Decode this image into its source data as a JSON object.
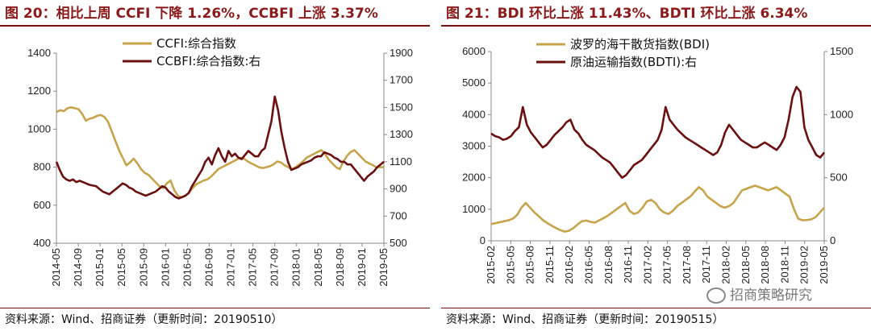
{
  "left": {
    "title": "图 20：相比上周 CCFI 下降 1.26%，CCBFI 上涨 3.37%",
    "source": "资料来源：Wind、招商证券（更新时间：20190510）"
  },
  "right": {
    "title": "图 21：BDI 环比上涨 11.43%、BDTI 环比上涨 6.34%",
    "source": "资料来源：Wind、招商证券（更新时间：20190515）"
  },
  "watermark": "招商策略研究",
  "colors": {
    "gold": "#c7a34a",
    "maroon": "#6b0f0f",
    "title": "#8c1a1a"
  },
  "chart_data": [
    {
      "type": "line",
      "dual_axis": true,
      "x_ticks": [
        "2014-05",
        "2014-09",
        "2015-01",
        "2015-05",
        "2015-09",
        "2016-01",
        "2016-05",
        "2016-09",
        "2017-01",
        "2017-05",
        "2017-09",
        "2018-01",
        "2018-05",
        "2018-09",
        "2019-01",
        "2019-05"
      ],
      "y_left": {
        "min": 400,
        "max": 1400,
        "ticks": [
          "400",
          "600",
          "800",
          "1000",
          "1200",
          "1400"
        ]
      },
      "y_right": {
        "min": 500,
        "max": 1900,
        "ticks": [
          "500",
          "700",
          "900",
          "1100",
          "1300",
          "1500",
          "1700",
          "1900"
        ]
      },
      "legend_position": "top-left",
      "series": [
        {
          "name": "CCFI:综合指数",
          "axis": "left",
          "color": "#c7a34a",
          "values": [
            1090,
            1100,
            1095,
            1110,
            1115,
            1110,
            1105,
            1080,
            1045,
            1055,
            1060,
            1070,
            1075,
            1065,
            1040,
            990,
            940,
            890,
            850,
            810,
            825,
            845,
            820,
            790,
            770,
            760,
            740,
            720,
            700,
            690,
            715,
            730,
            680,
            650,
            640,
            650,
            665,
            690,
            710,
            720,
            730,
            735,
            750,
            770,
            790,
            800,
            810,
            820,
            830,
            840,
            850,
            845,
            830,
            820,
            810,
            800,
            795,
            800,
            805,
            815,
            830,
            825,
            810,
            800,
            790,
            800,
            815,
            830,
            850,
            860,
            870,
            880,
            890,
            870,
            840,
            820,
            800,
            790,
            830,
            860,
            880,
            890,
            870,
            850,
            830,
            820,
            810,
            800,
            800,
            800
          ]
        },
        {
          "name": "CCBFI:综合指数:右",
          "axis": "right",
          "color": "#6b0f0f",
          "values": [
            1100,
            1040,
            990,
            970,
            960,
            970,
            950,
            960,
            950,
            940,
            930,
            925,
            920,
            900,
            880,
            870,
            860,
            880,
            900,
            920,
            940,
            930,
            910,
            900,
            880,
            870,
            860,
            850,
            860,
            870,
            880,
            900,
            920,
            910,
            880,
            860,
            840,
            830,
            840,
            850,
            870,
            920,
            960,
            1000,
            1040,
            1100,
            1130,
            1080,
            1150,
            1200,
            1140,
            1100,
            1180,
            1140,
            1160,
            1130,
            1120,
            1150,
            1180,
            1160,
            1140,
            1140,
            1180,
            1200,
            1300,
            1400,
            1580,
            1480,
            1320,
            1200,
            1100,
            1040,
            1050,
            1060,
            1080,
            1090,
            1100,
            1110,
            1130,
            1140,
            1140,
            1170,
            1160,
            1150,
            1130,
            1120,
            1100,
            1100,
            1080,
            1080,
            1050,
            1020,
            990,
            960,
            990,
            1010,
            1030,
            1060,
            1080,
            1100
          ]
        }
      ]
    },
    {
      "type": "line",
      "dual_axis": true,
      "x_ticks": [
        "2015-02",
        "2015-05",
        "2015-08",
        "2015-11",
        "2016-02",
        "2016-05",
        "2016-08",
        "2016-11",
        "2017-02",
        "2017-05",
        "2017-08",
        "2017-11",
        "2018-02",
        "2018-05",
        "2018-08",
        "2018-11",
        "2019-02",
        "2019-05"
      ],
      "y_left": {
        "min": 0,
        "max": 6000,
        "ticks": [
          "0",
          "1000",
          "2000",
          "3000",
          "4000",
          "5000",
          "6000"
        ]
      },
      "y_right": {
        "min": 0,
        "max": 1500,
        "ticks": [
          "0",
          "500",
          "1000",
          "1500"
        ]
      },
      "legend_position": "top-left",
      "series": [
        {
          "name": "波罗的海干散货指数(BDI)",
          "axis": "left",
          "color": "#c7a34a",
          "values": [
            530,
            560,
            590,
            620,
            650,
            700,
            820,
            1050,
            1200,
            1050,
            900,
            780,
            650,
            560,
            480,
            400,
            340,
            290,
            320,
            400,
            520,
            620,
            640,
            600,
            580,
            650,
            720,
            800,
            900,
            1000,
            1100,
            1200,
            950,
            850,
            900,
            1050,
            1250,
            1300,
            1200,
            1000,
            900,
            850,
            950,
            1100,
            1200,
            1300,
            1400,
            1550,
            1700,
            1600,
            1400,
            1300,
            1200,
            1100,
            1050,
            1100,
            1200,
            1400,
            1600,
            1650,
            1700,
            1750,
            1700,
            1650,
            1600,
            1650,
            1700,
            1600,
            1500,
            1400,
            1000,
            700,
            650,
            660,
            680,
            750,
            900,
            1050
          ]
        },
        {
          "name": "原油运输指数(BDTI):右",
          "axis": "right",
          "color": "#6b0f0f",
          "values": [
            850,
            830,
            820,
            800,
            810,
            830,
            870,
            900,
            1060,
            920,
            860,
            820,
            780,
            740,
            760,
            800,
            840,
            870,
            900,
            940,
            960,
            880,
            850,
            800,
            760,
            740,
            720,
            690,
            660,
            640,
            620,
            580,
            540,
            500,
            520,
            560,
            600,
            620,
            640,
            680,
            720,
            760,
            800,
            880,
            1060,
            960,
            920,
            880,
            850,
            820,
            800,
            780,
            760,
            740,
            720,
            700,
            680,
            700,
            760,
            860,
            920,
            880,
            840,
            800,
            780,
            760,
            740,
            740,
            760,
            780,
            760,
            740,
            720,
            760,
            820,
            960,
            1140,
            1220,
            1180,
            900,
            800,
            740,
            680,
            660,
            700
          ]
        }
      ]
    }
  ]
}
